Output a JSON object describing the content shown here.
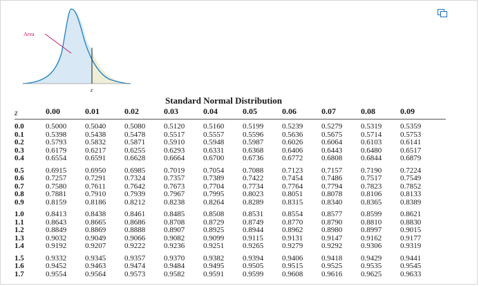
{
  "figure": {
    "area_label": "Area",
    "z_label": "z"
  },
  "icons": {
    "popout": "popout-window-icon"
  },
  "table": {
    "title": "Standard Normal Distribution",
    "z_header": "z",
    "columns": [
      "0.00",
      "0.01",
      "0.02",
      "0.03",
      "0.04",
      "0.05",
      "0.06",
      "0.07",
      "0.08",
      "0.09"
    ],
    "rows": [
      {
        "z": "0.0",
        "values": [
          "0.5000",
          "0.5040",
          "0.5080",
          "0.5120",
          "0.5160",
          "0.5199",
          "0.5239",
          "0.5279",
          "0.5319",
          "0.5359"
        ]
      },
      {
        "z": "0.1",
        "values": [
          "0.5398",
          "0.5438",
          "0.5478",
          "0.5517",
          "0.5557",
          "0.5596",
          "0.5636",
          "0.5675",
          "0.5714",
          "0.5753"
        ]
      },
      {
        "z": "0.2",
        "values": [
          "0.5793",
          "0.5832",
          "0.5871",
          "0.5910",
          "0.5948",
          "0.5987",
          "0.6026",
          "0.6064",
          "0.6103",
          "0.6141"
        ]
      },
      {
        "z": "0.3",
        "values": [
          "0.6179",
          "0.6217",
          "0.6255",
          "0.6293",
          "0.6331",
          "0.6368",
          "0.6406",
          "0.6443",
          "0.6480",
          "0.6517"
        ]
      },
      {
        "z": "0.4",
        "values": [
          "0.6554",
          "0.6591",
          "0.6628",
          "0.6664",
          "0.6700",
          "0.6736",
          "0.6772",
          "0.6808",
          "0.6844",
          "0.6879"
        ]
      },
      {
        "z": "0.5",
        "values": [
          "0.6915",
          "0.6950",
          "0.6985",
          "0.7019",
          "0.7054",
          "0.7088",
          "0.7123",
          "0.7157",
          "0.7190",
          "0.7224"
        ]
      },
      {
        "z": "0.6",
        "values": [
          "0.7257",
          "0.7291",
          "0.7324",
          "0.7357",
          "0.7389",
          "0.7422",
          "0.7454",
          "0.7486",
          "0.7517",
          "0.7549"
        ]
      },
      {
        "z": "0.7",
        "values": [
          "0.7580",
          "0.7611",
          "0.7642",
          "0.7673",
          "0.7704",
          "0.7734",
          "0.7764",
          "0.7794",
          "0.7823",
          "0.7852"
        ]
      },
      {
        "z": "0.8",
        "values": [
          "0.7881",
          "0.7910",
          "0.7939",
          "0.7967",
          "0.7995",
          "0.8023",
          "0.8051",
          "0.8078",
          "0.8106",
          "0.8133"
        ]
      },
      {
        "z": "0.9",
        "values": [
          "0.8159",
          "0.8186",
          "0.8212",
          "0.8238",
          "0.8264",
          "0.8289",
          "0.8315",
          "0.8340",
          "0.8365",
          "0.8389"
        ]
      },
      {
        "z": "1.0",
        "values": [
          "0.8413",
          "0.8438",
          "0.8461",
          "0.8485",
          "0.8508",
          "0.8531",
          "0.8554",
          "0.8577",
          "0.8599",
          "0.8621"
        ]
      },
      {
        "z": "1.1",
        "values": [
          "0.8643",
          "0.8665",
          "0.8686",
          "0.8708",
          "0.8729",
          "0.8749",
          "0.8770",
          "0.8790",
          "0.8810",
          "0.8830"
        ]
      },
      {
        "z": "1.2",
        "values": [
          "0.8849",
          "0.8869",
          "0.8888",
          "0.8907",
          "0.8925",
          "0.8944",
          "0.8962",
          "0.8980",
          "0.8997",
          "0.9015"
        ]
      },
      {
        "z": "1.3",
        "values": [
          "0.9032",
          "0.9049",
          "0.9066",
          "0.9082",
          "0.9099",
          "0.9115",
          "0.9131",
          "0.9147",
          "0.9162",
          "0.9177"
        ]
      },
      {
        "z": "1.4",
        "values": [
          "0.9192",
          "0.9207",
          "0.9222",
          "0.9236",
          "0.9251",
          "0.9265",
          "0.9279",
          "0.9292",
          "0.9306",
          "0.9319"
        ]
      },
      {
        "z": "1.5",
        "values": [
          "0.9332",
          "0.9345",
          "0.9357",
          "0.9370",
          "0.9382",
          "0.9394",
          "0.9406",
          "0.9418",
          "0.9429",
          "0.9441"
        ]
      },
      {
        "z": "1.6",
        "values": [
          "0.9452",
          "0.9463",
          "0.9474",
          "0.9484",
          "0.9495",
          "0.9505",
          "0.9515",
          "0.9525",
          "0.9535",
          "0.9545"
        ]
      },
      {
        "z": "1.7",
        "values": [
          "0.9554",
          "0.9564",
          "0.9573",
          "0.9582",
          "0.9591",
          "0.9599",
          "0.9608",
          "0.9616",
          "0.9625",
          "0.9633"
        ]
      }
    ]
  }
}
